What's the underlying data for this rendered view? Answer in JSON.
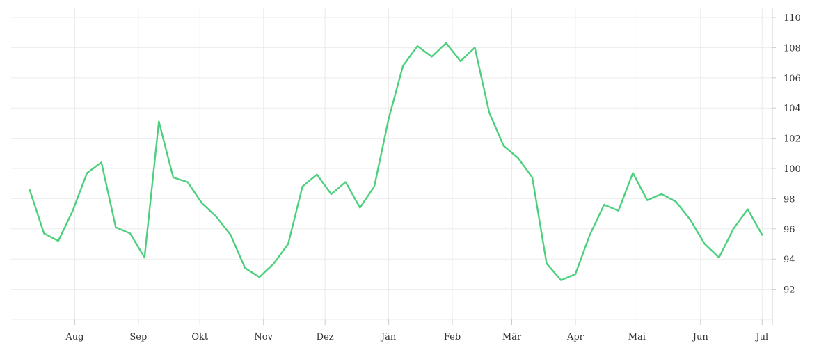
{
  "chart_data": {
    "type": "line",
    "title": "",
    "xlabel": "",
    "ylabel": "",
    "x_ticks": [
      "Aug",
      "Sep",
      "Okt",
      "Nov",
      "Dez",
      "Jän",
      "Feb",
      "Mär",
      "Apr",
      "Mai",
      "Jun",
      "Jul"
    ],
    "y_ticks": [
      92,
      94,
      96,
      98,
      100,
      102,
      104,
      106,
      108,
      110
    ],
    "ylim": [
      90,
      110.6
    ],
    "grid": true,
    "legend": "none",
    "y_axis_position": "right",
    "line_color": "#4cd07d",
    "series": [
      {
        "x_start": "2023-07-24",
        "x_step_days": 7,
        "values": [
          98.6,
          95.7,
          95.2,
          97.2,
          99.7,
          100.4,
          96.1,
          95.7,
          94.1,
          103.1,
          99.4,
          99.1,
          97.7,
          96.8,
          95.6,
          93.4,
          92.8,
          93.7,
          95.0,
          98.8,
          99.6,
          98.3,
          99.1,
          97.4,
          98.8,
          103.3,
          106.8,
          108.1,
          107.4,
          108.3,
          107.1,
          108.0,
          103.7,
          101.5,
          100.7,
          99.4,
          93.7,
          92.6,
          93.0,
          95.6,
          97.6,
          97.2,
          99.7,
          97.9,
          98.3,
          97.8,
          96.6,
          95.0,
          94.1,
          96.0,
          97.3,
          95.6
        ]
      }
    ]
  }
}
